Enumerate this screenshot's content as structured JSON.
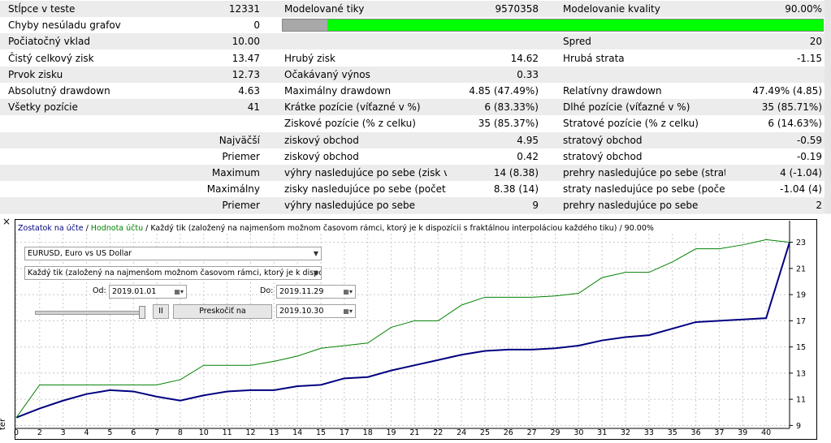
{
  "table": {
    "rows": [
      {
        "label1": "Stĺpce v teste",
        "value1": "12331",
        "label2": "Modelované tiky",
        "value2": "9570358",
        "label3": "Modelovanie kvality",
        "value3": "90.00%"
      },
      {
        "label1": "Chyby nesúladu grafov",
        "value1": "0"
      },
      {
        "label1": "Počiatočný vklad",
        "value1": "10.00",
        "label3": "Spred",
        "value3": "20"
      },
      {
        "label1": "Čistý celkový zisk",
        "value1": "13.47",
        "label2": "Hrubý zisk",
        "value2": "14.62",
        "label3": "Hrubá strata",
        "value3": "-1.15"
      },
      {
        "label1": "Prvok zisku",
        "value1": "12.73",
        "label2": "Očakávaný výnos",
        "value2": "0.33"
      },
      {
        "label1": "Absolutný drawdown",
        "value1": "4.63",
        "label2": "Maximálny drawdown",
        "value2": "4.85 (47.49%)",
        "label3": "Relatívny drawdown",
        "value3": "47.49% (4.85)"
      },
      {
        "label1": "Všetky pozície",
        "value1": "41",
        "label2": "Krátke pozície (víťazné v %)",
        "value2": "6 (83.33%)",
        "label3": "Dlhé pozície (víťazné v %)",
        "value3": "35 (85.71%)"
      },
      {
        "label2": "Ziskové pozície (% z celku)",
        "value2": "35 (85.37%)",
        "label3": "Stratové pozície (% z celku)",
        "value3": "6 (14.63%)"
      },
      {
        "value1": "Najväčší",
        "label2": "ziskový obchod",
        "value2": "4.95",
        "label3": "stratový obchod",
        "value3": "-0.59"
      },
      {
        "value1": "Priemer",
        "label2": "ziskový obchod",
        "value2": "0.42",
        "label3": "stratový obchod",
        "value3": "-0.19"
      },
      {
        "value1": "Maximum",
        "label2": "výhry nasledujúce po sebe (zisk v ...",
        "value2": "14 (8.38)",
        "label3": "prehry nasledujúce po sebe (strata ...",
        "value3": "4 (-1.04)"
      },
      {
        "value1": "Maximálny",
        "label2": "zisky nasledujúce po sebe (počet v...",
        "value2": "8.38 (14)",
        "label3": "straty nasledujúce po sebe (počet ...",
        "value3": "-1.04 (4)"
      },
      {
        "value1": "Priemer",
        "label2": "výhry nasledujúce po sebe",
        "value2": "9",
        "label3": "prehry nasledujúce po sebe",
        "value3": "2"
      }
    ]
  },
  "panel": {
    "close": "×",
    "side_label": "ter"
  },
  "controls": {
    "symbol": "EURUSD, Euro vs US Dollar",
    "model": "Každý tik (založený na najmenšom možnom časovom rámci, ktorý je k dispozícii s fraktálnou",
    "from_label": "Od:",
    "from_date": "2019.01.01",
    "to_label": "Do:",
    "to_date": "2019.11.29",
    "pause": "II",
    "skip_button": "Preskočiť na",
    "skip_date": "2019.10.30"
  },
  "chart_data": {
    "type": "line",
    "separator": "/",
    "subtitle": "Každý tik (založený na najmenšom možnom časovom rámci, ktorý je k dispozícii s fraktálnou interpoláciou každého tiku)",
    "quality": "90.00%",
    "categories": [
      "0",
      "2",
      "3",
      "4",
      "5",
      "6",
      "7",
      "8",
      "10",
      "11",
      "12",
      "13",
      "14",
      "15",
      "17",
      "18",
      "19",
      "21",
      "22",
      "24",
      "25",
      "26",
      "27",
      "29",
      "30",
      "31",
      "32",
      "33",
      "35",
      "36",
      "37",
      "39",
      "40",
      null
    ],
    "series": [
      {
        "name": "Zostatok na účte",
        "color": "#000080",
        "values": [
          9.6,
          10.3,
          10.9,
          11.4,
          11.7,
          11.6,
          11.2,
          10.9,
          11.3,
          11.6,
          11.7,
          11.7,
          12.0,
          12.1,
          12.6,
          12.7,
          13.2,
          13.6,
          14.0,
          14.4,
          14.7,
          14.8,
          14.8,
          14.9,
          15.1,
          15.5,
          15.75,
          15.9,
          16.4,
          16.9,
          17.0,
          17.1,
          17.2,
          23.0
        ]
      },
      {
        "name": "Hodnota účtu",
        "color": "#008000",
        "values": [
          9.6,
          12.1,
          12.1,
          12.1,
          12.1,
          12.1,
          12.1,
          12.5,
          13.6,
          13.6,
          13.6,
          13.9,
          14.3,
          14.9,
          15.1,
          15.3,
          16.5,
          17.0,
          17.0,
          18.2,
          18.8,
          18.8,
          18.8,
          18.9,
          19.1,
          20.3,
          20.7,
          20.7,
          21.5,
          22.5,
          22.5,
          22.8,
          23.2,
          23.0
        ]
      }
    ],
    "ylim": [
      8.9,
      24.4
    ],
    "yticks": [
      9,
      11,
      13,
      15,
      17,
      19,
      21,
      23
    ],
    "grid": true
  }
}
